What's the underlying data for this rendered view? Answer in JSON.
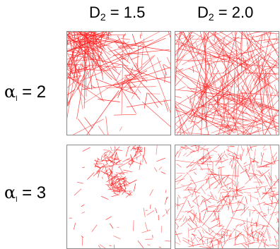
{
  "columns": [
    {
      "var": "D",
      "sub": "2",
      "rest": " = 1.5"
    },
    {
      "var": "D",
      "sub": "2",
      "rest": " = 2.0"
    }
  ],
  "rows": [
    {
      "var": "α",
      "sub": "l",
      "rest": " = 2"
    },
    {
      "var": "α",
      "sub": "l",
      "rest": " = 3"
    }
  ],
  "panels": [
    {
      "row": 0,
      "col": 0,
      "description": "clustered long fibers"
    },
    {
      "row": 0,
      "col": 1,
      "description": "uniform long fibers"
    },
    {
      "row": 1,
      "col": 0,
      "description": "clustered short fibers"
    },
    {
      "row": 1,
      "col": 1,
      "description": "uniform short fibers"
    }
  ],
  "colors": {
    "fiber": "#ff1a1a",
    "frame": "#8a8a8a"
  }
}
